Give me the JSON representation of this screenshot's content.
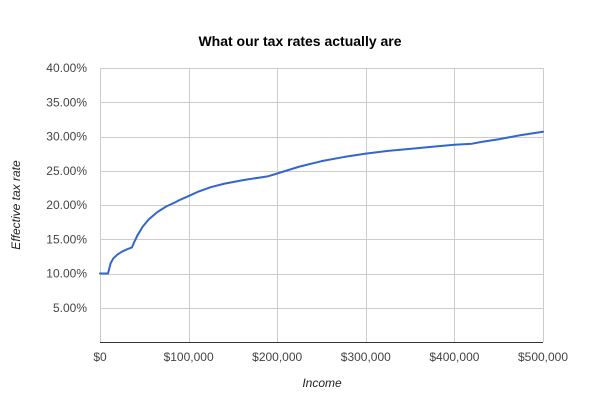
{
  "chart_data": {
    "type": "line",
    "title": "What our tax rates actually are",
    "xlabel": "Income",
    "ylabel": "Effective tax rate",
    "xlim": [
      0,
      500000
    ],
    "ylim": [
      0,
      40
    ],
    "grid": true,
    "legend": "none",
    "x_ticks": [
      0,
      100000,
      200000,
      300000,
      400000,
      500000
    ],
    "x_tick_labels": [
      "$0",
      "$100,000",
      "$200,000",
      "$300,000",
      "$400,000",
      "$500,000"
    ],
    "y_ticks": [
      5,
      10,
      15,
      20,
      25,
      30,
      35,
      40
    ],
    "y_tick_labels": [
      "5.00%",
      "10.00%",
      "15.00%",
      "20.00%",
      "25.00%",
      "30.00%",
      "35.00%",
      "40.00%"
    ],
    "series": [
      {
        "color": "#3366cc",
        "x": [
          0,
          9000,
          10000,
          12000,
          15000,
          20000,
          25000,
          30000,
          36000,
          38000,
          42000,
          48000,
          55000,
          65000,
          75000,
          85000,
          91000,
          100000,
          110000,
          125000,
          140000,
          160000,
          180000,
          190000,
          200000,
          225000,
          250000,
          275000,
          300000,
          325000,
          350000,
          375000,
          400000,
          420000,
          430000,
          450000,
          475000,
          500000
        ],
        "y": [
          10.0,
          10.0,
          10.5,
          11.5,
          12.2,
          12.8,
          13.2,
          13.5,
          13.8,
          14.4,
          15.5,
          16.8,
          17.9,
          19.0,
          19.8,
          20.4,
          20.8,
          21.3,
          21.9,
          22.6,
          23.1,
          23.6,
          24.0,
          24.2,
          24.6,
          25.6,
          26.4,
          27.0,
          27.5,
          27.9,
          28.2,
          28.5,
          28.8,
          28.95,
          29.2,
          29.6,
          30.2,
          30.7
        ]
      }
    ]
  }
}
